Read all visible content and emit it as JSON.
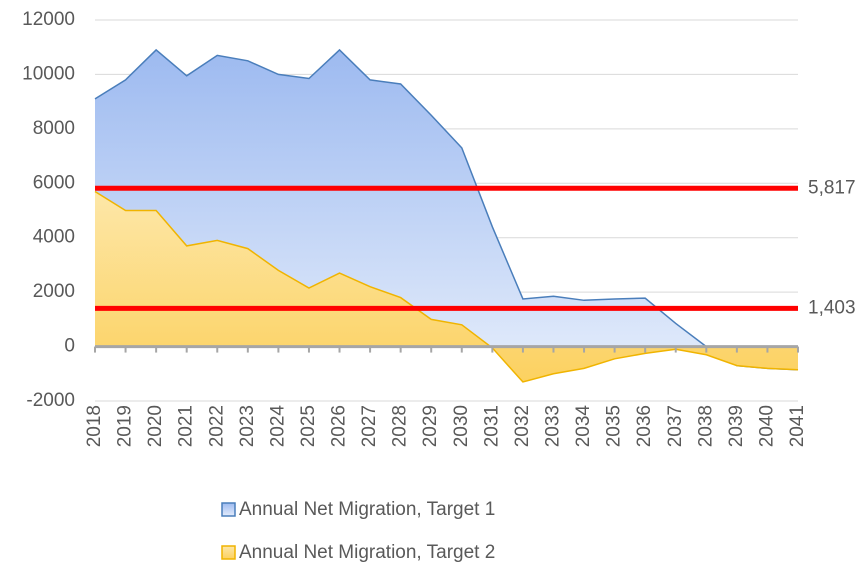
{
  "chart_data": {
    "type": "area",
    "categories": [
      "2018",
      "2019",
      "2020",
      "2021",
      "2022",
      "2023",
      "2024",
      "2025",
      "2026",
      "2027",
      "2028",
      "2029",
      "2030",
      "2031",
      "2032",
      "2033",
      "2034",
      "2035",
      "2036",
      "2037",
      "2038",
      "2039",
      "2040",
      "2041"
    ],
    "series": [
      {
        "name": "Annual Net Migration, Target 1",
        "color": "#4a7ebb",
        "values": [
          9100,
          9800,
          10900,
          9950,
          10700,
          10500,
          10000,
          9850,
          10900,
          9800,
          9650,
          8500,
          7300,
          4400,
          1750,
          1850,
          1700,
          1750,
          1780,
          850,
          0,
          -700,
          -800,
          -850
        ]
      },
      {
        "name": "Annual Net Migration, Target 2",
        "color": "#f0b400",
        "values": [
          5700,
          5000,
          5000,
          3700,
          3900,
          3600,
          2800,
          2150,
          2700,
          2200,
          1800,
          1000,
          800,
          -50,
          -1300,
          -1000,
          -800,
          -450,
          -250,
          -100,
          -300,
          -700,
          -800,
          -850
        ]
      }
    ],
    "reference_lines": [
      {
        "value": 5817,
        "label": "5,817",
        "color": "#ff0000"
      },
      {
        "value": 1403,
        "label": "1,403",
        "color": "#ff0000"
      }
    ],
    "ylim": [
      -2000,
      12000
    ],
    "yticks": [
      -2000,
      0,
      2000,
      4000,
      6000,
      8000,
      10000,
      12000
    ],
    "grid": true
  }
}
